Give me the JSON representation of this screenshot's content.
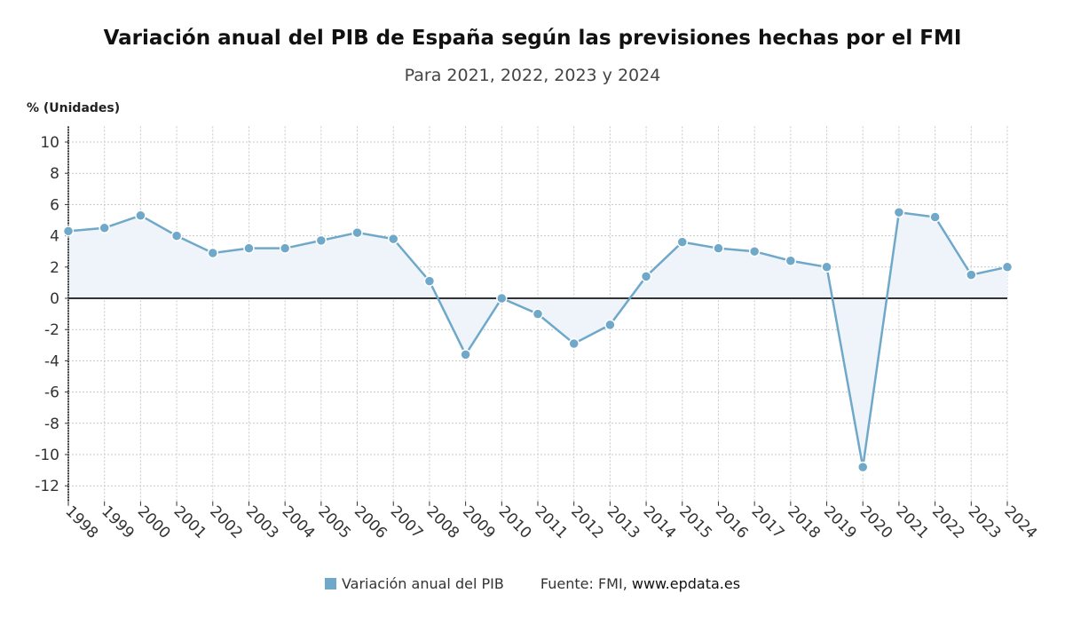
{
  "chart_data": {
    "type": "line",
    "title": "Variación anual del PIB de España según las previsiones hechas por el FMI",
    "subtitle": "Para 2021, 2022, 2023 y 2024",
    "ylabel": "% (Unidades)",
    "xlabel": "",
    "ylim": [
      -13,
      11
    ],
    "yticks": [
      10,
      8,
      6,
      4,
      2,
      0,
      -2,
      -4,
      -6,
      -8,
      -10,
      -12
    ],
    "grid": true,
    "legend_position": "bottom",
    "categories": [
      "1998",
      "1999",
      "2000",
      "2001",
      "2002",
      "2003",
      "2004",
      "2005",
      "2006",
      "2007",
      "2008",
      "2009",
      "2010",
      "2011",
      "2012",
      "2013",
      "2014",
      "2015",
      "2016",
      "2017",
      "2018",
      "2019",
      "2020",
      "2021",
      "2022",
      "2023",
      "2024"
    ],
    "series": [
      {
        "name": "Variación anual del PIB",
        "color": "#6fa8c9",
        "values": [
          4.3,
          4.5,
          5.3,
          4.0,
          2.9,
          3.2,
          3.2,
          3.7,
          4.2,
          3.8,
          1.1,
          -3.6,
          0.0,
          -1.0,
          -2.9,
          -1.7,
          1.4,
          3.6,
          3.2,
          3.0,
          2.4,
          2.0,
          -10.8,
          5.5,
          5.2,
          1.5,
          2.0
        ]
      }
    ],
    "source_label": "Fuente: FMI,",
    "source_site": "www.epdata.es"
  }
}
